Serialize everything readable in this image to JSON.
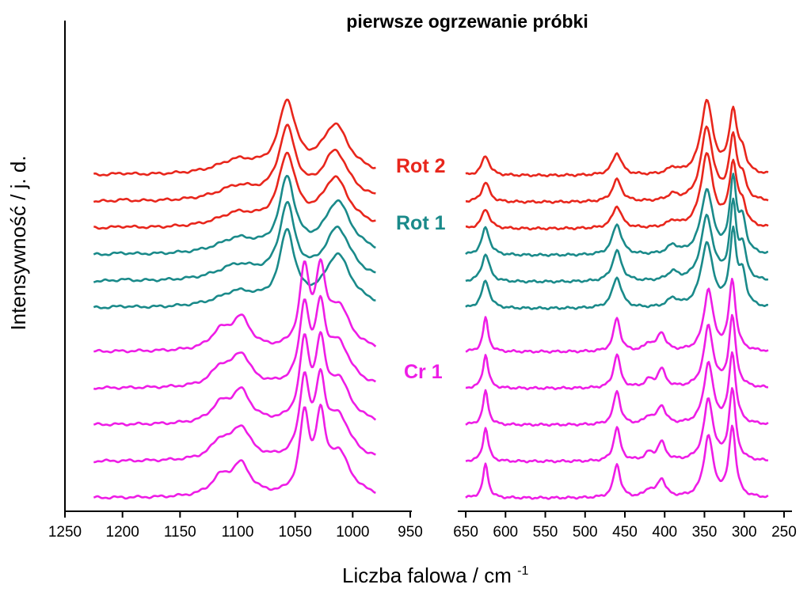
{
  "chart_data": {
    "type": "line",
    "title": "pierwsze ogrzewanie próbki",
    "xlabel": "Liczba falowa / cm",
    "xlabel_superscript": "-1",
    "ylabel": "Intensywność / j. d.",
    "x_reversed": true,
    "y_ticks_shown": false,
    "grid": false,
    "panels": [
      {
        "xlim": [
          1250,
          950
        ],
        "xticks": [
          1250,
          1200,
          1150,
          1100,
          1050,
          1000,
          950
        ],
        "data_xrange": [
          1225,
          980
        ]
      },
      {
        "xlim": [
          660,
          240
        ],
        "xticks": [
          650,
          600,
          550,
          500,
          450,
          400,
          350,
          300,
          250
        ],
        "data_xrange": [
          650,
          270
        ]
      }
    ],
    "groups": [
      {
        "name": "Rot 2",
        "color": "#e8261c",
        "offsets": [
          0.9,
          0.82,
          0.74
        ],
        "peaks_high": [
          [
            1057,
            1.0,
            9
          ],
          [
            1015,
            0.7,
            14
          ],
          [
            1100,
            0.2,
            22
          ],
          [
            1200,
            0.02,
            8
          ]
        ],
        "peaks_low": [
          [
            625,
            0.32,
            6
          ],
          [
            460,
            0.36,
            7
          ],
          [
            390,
            0.1,
            8
          ],
          [
            347,
            1.2,
            9
          ],
          [
            314,
            1.0,
            6
          ],
          [
            302,
            0.3,
            5
          ]
        ]
      },
      {
        "name": "Rot 1",
        "color": "#1a8a8a",
        "offsets": [
          0.66,
          0.58,
          0.5
        ],
        "peaks_high": [
          [
            1057,
            1.05,
            8
          ],
          [
            1013,
            0.75,
            14
          ],
          [
            1100,
            0.22,
            22
          ],
          [
            1200,
            0.02,
            8
          ]
        ],
        "peaks_low": [
          [
            625,
            0.45,
            6
          ],
          [
            460,
            0.5,
            7
          ],
          [
            390,
            0.14,
            8
          ],
          [
            347,
            1.05,
            9
          ],
          [
            314,
            1.2,
            5
          ],
          [
            302,
            0.5,
            5
          ]
        ]
      },
      {
        "name": "Cr 1",
        "color": "#ee1de6",
        "offsets": [
          0.37,
          0.26,
          0.15,
          0.04,
          -0.07
        ],
        "peaks_high": [
          [
            1042,
            1.1,
            5
          ],
          [
            1028,
            1.0,
            5
          ],
          [
            1012,
            0.6,
            12
          ],
          [
            1097,
            0.45,
            10
          ],
          [
            1115,
            0.25,
            10
          ]
        ],
        "peaks_low": [
          [
            625,
            0.55,
            4
          ],
          [
            460,
            0.55,
            5
          ],
          [
            404,
            0.3,
            6
          ],
          [
            420,
            0.12,
            6
          ],
          [
            345,
            1.0,
            7
          ],
          [
            315,
            1.15,
            5
          ]
        ]
      }
    ]
  }
}
